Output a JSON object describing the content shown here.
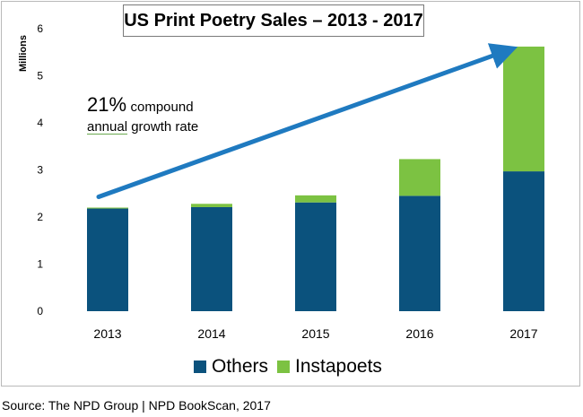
{
  "chart_data": {
    "type": "bar",
    "stacked": true,
    "title": "US Print Poetry Sales – 2013 - 2017",
    "ylabel": "Millions",
    "xlabel": "",
    "ylim": [
      0,
      6
    ],
    "yticks": [
      0,
      1,
      2,
      3,
      4,
      5,
      6
    ],
    "categories": [
      "2013",
      "2014",
      "2015",
      "2016",
      "2017"
    ],
    "series": [
      {
        "name": "Others",
        "color": "#0b527d",
        "values": [
          2.18,
          2.21,
          2.31,
          2.45,
          2.97
        ]
      },
      {
        "name": "Instapoets",
        "color": "#7cc242",
        "values": [
          0.02,
          0.07,
          0.15,
          0.78,
          2.65
        ]
      }
    ],
    "annotation": {
      "line1_big": "21%",
      "line1_small": "compound",
      "line2_underlined": "annual",
      "line2_rest": "growth rate",
      "arrow_color": "#1f7ac0"
    },
    "legend_position": "bottom"
  },
  "source": "Source: The NPD Group | NPD BookScan, 2017"
}
